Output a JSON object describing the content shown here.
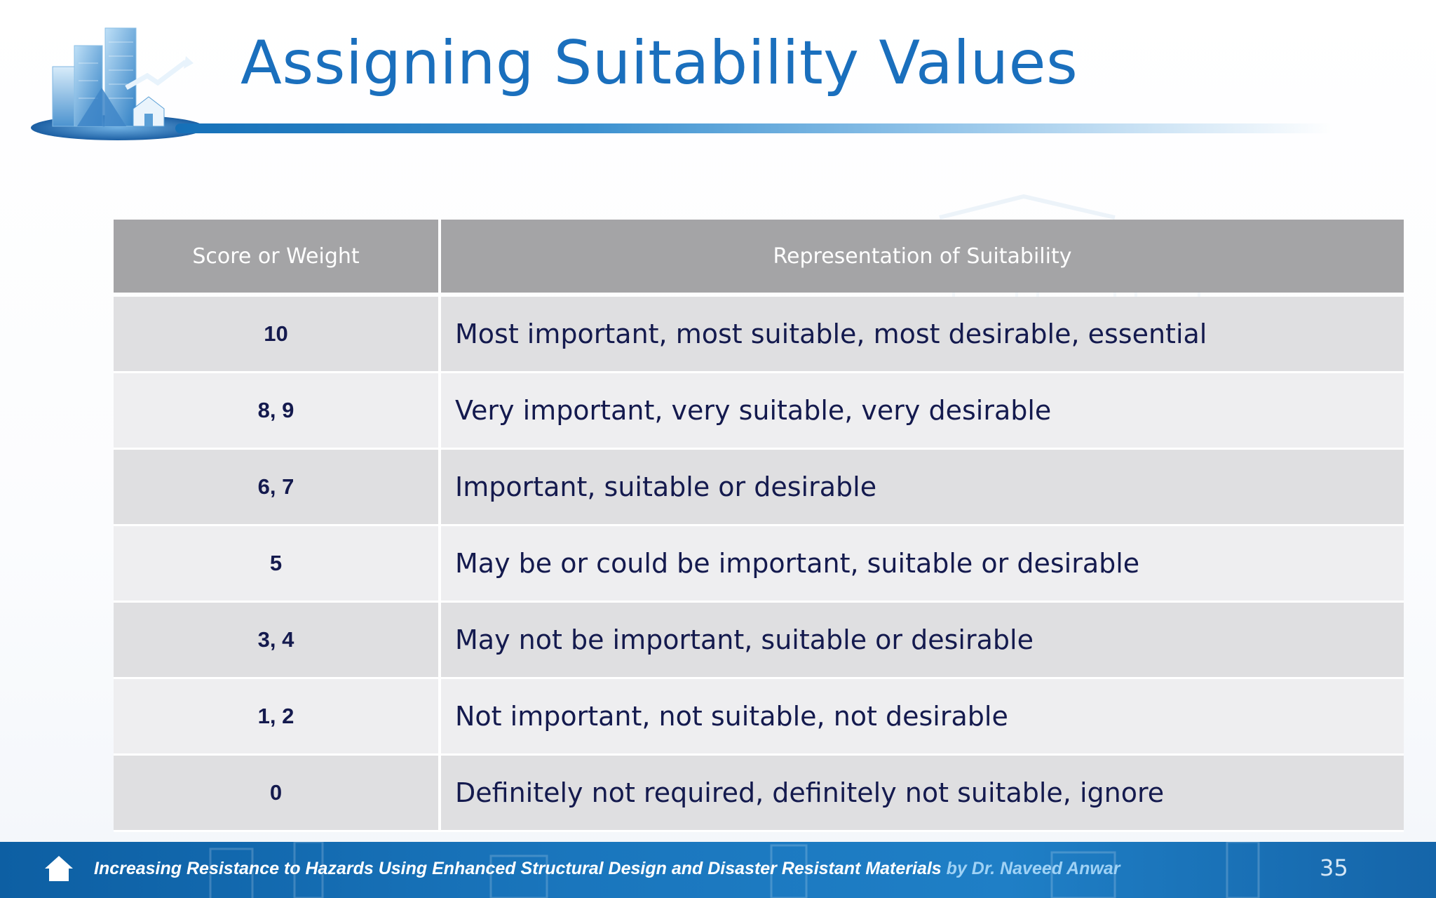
{
  "slide": {
    "title": "Assigning Suitability Values",
    "page_number": "35"
  },
  "table": {
    "headers": {
      "score": "Score or Weight",
      "representation": "Representation of Suitability"
    },
    "rows": [
      {
        "score": "10",
        "description": "Most important, most suitable, most desirable, essential"
      },
      {
        "score": "8, 9",
        "description": "Very important, very suitable, very desirable"
      },
      {
        "score": "6, 7",
        "description": "Important, suitable or desirable"
      },
      {
        "score": "5",
        "description": "May be or could be important, suitable or desirable"
      },
      {
        "score": "3, 4",
        "description": "May not be important, suitable or desirable"
      },
      {
        "score": "1, 2",
        "description": "Not important, not suitable, not desirable"
      },
      {
        "score": "0",
        "description": "Definitely not required, definitely not suitable, ignore"
      }
    ]
  },
  "footer": {
    "course_title": "Increasing Resistance to Hazards Using Enhanced Structural Design and Disaster Resistant Materials",
    "author": "by Dr. Naveed Anwar",
    "home_icon": "home-icon"
  },
  "colors": {
    "title": "#1a6fbd",
    "header_bg": "#a4a4a6",
    "row_odd": "#dfdfe1",
    "row_even": "#eeeef0",
    "text_dark": "#141a4e",
    "footer_bg": "#1a76bd",
    "footer_author": "#9fd2f5"
  }
}
